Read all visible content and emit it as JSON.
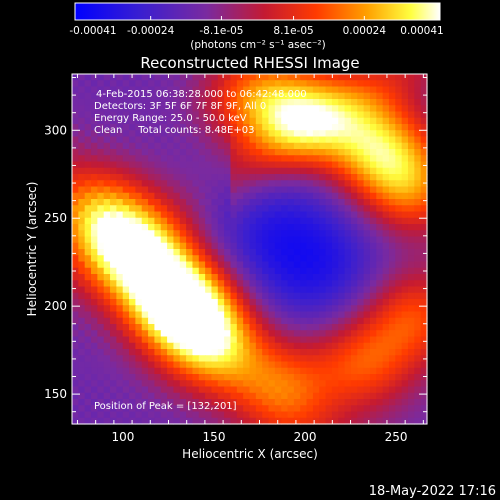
{
  "colorbar": {
    "ticks": [
      -0.00041,
      -0.00024,
      -8.1e-05,
      8.1e-05,
      0.00024,
      0.00041
    ],
    "tick_labels": [
      "-0.00041",
      "-0.00024",
      "-8.1e-05",
      "8.1e-05",
      "0.00024",
      "0.00041"
    ],
    "units": "(photons cm⁻² s⁻¹ asec⁻²)",
    "range": [
      -0.00041,
      0.00041
    ]
  },
  "info": {
    "line1": "4-Feb-2015 06:38:28.000 to 06:42:48.000",
    "line2": "Detectors: 3F 5F 6F 7F 8F 9F, All 0",
    "line3": "Energy Range: 25.0 - 50.0 keV",
    "line4": "Clean     Total counts: 8.48E+03",
    "peak": "Position of Peak = [132,201]"
  },
  "timestamp": "18-May-2022 17:16",
  "chart_data": {
    "type": "heatmap",
    "title": "Reconstructed RHESSI Image",
    "xlabel": "Heliocentric X (arcsec)",
    "ylabel": "Heliocentric Y (arcsec)",
    "xlim": [
      72,
      267
    ],
    "ylim": [
      133,
      332
    ],
    "xticks": [
      100,
      150,
      200,
      250
    ],
    "yticks": [
      150,
      200,
      250,
      300
    ],
    "colormap": "blue-purple-red-yellow-white",
    "value_range": [
      -0.00041,
      0.00041
    ],
    "features": [
      {
        "x": 132,
        "y": 201,
        "level": 0.00041
      },
      {
        "x": 112,
        "y": 226,
        "level": 0.0003
      },
      {
        "x": 90,
        "y": 250,
        "level": 0.00025
      },
      {
        "x": 150,
        "y": 180,
        "level": 0.00024
      },
      {
        "x": 238,
        "y": 292,
        "level": 0.0003
      },
      {
        "x": 200,
        "y": 308,
        "level": 0.00026
      },
      {
        "x": 258,
        "y": 268,
        "level": 0.00025
      },
      {
        "x": 172,
        "y": 318,
        "level": 0.00022
      },
      {
        "x": 232,
        "y": 168,
        "level": 0.0002
      },
      {
        "x": 260,
        "y": 195,
        "level": 0.0002
      },
      {
        "x": 190,
        "y": 155,
        "level": 0.00015
      },
      {
        "x": 180,
        "y": 243,
        "level": -0.0002
      },
      {
        "x": 210,
        "y": 220,
        "level": -0.00022
      }
    ],
    "peak": {
      "x": 132,
      "y": 201
    }
  }
}
